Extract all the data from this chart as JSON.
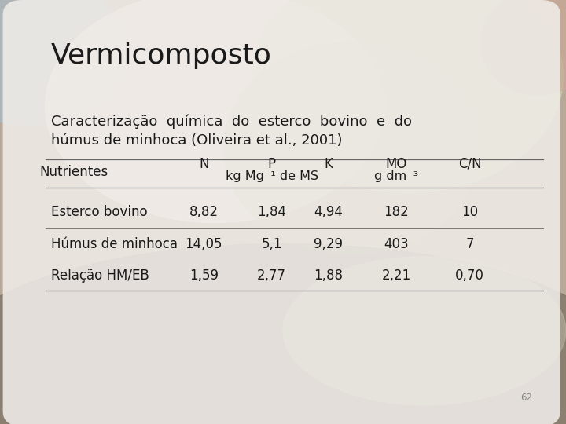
{
  "title": "Vermicomposto",
  "subtitle_line1": "Caracterização  química  do  esterco  bovino  e  do",
  "subtitle_line2": "húmus de minhoca (Oliveira et al., 2001)",
  "table_rows": [
    [
      "Esterco bovino",
      "8,82",
      "1,84",
      "4,94",
      "182",
      "10"
    ],
    [
      "Húmus de minhoca",
      "14,05",
      "5,1",
      "9,29",
      "403",
      "7"
    ],
    [
      "Relação HM/EB",
      "1,59",
      "2,77",
      "1,88",
      "2,21",
      "0,70"
    ]
  ],
  "text_color": "#1a1a1a",
  "line_color": "#666666",
  "page_number": "62",
  "title_fontsize": 26,
  "subtitle_fontsize": 13,
  "table_fontsize": 12
}
